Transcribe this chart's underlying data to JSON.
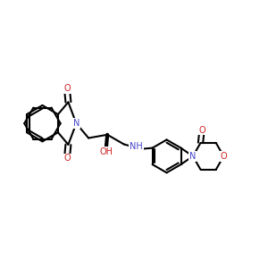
{
  "bg_color": "#ffffff",
  "bond_color": "#000000",
  "N_color": "#4444cc",
  "O_color": "#cc2222",
  "line_width": 1.5,
  "figsize": [
    3.0,
    3.0
  ],
  "dpi": 100,
  "xlim": [
    0,
    10
  ],
  "ylim": [
    0,
    10
  ]
}
